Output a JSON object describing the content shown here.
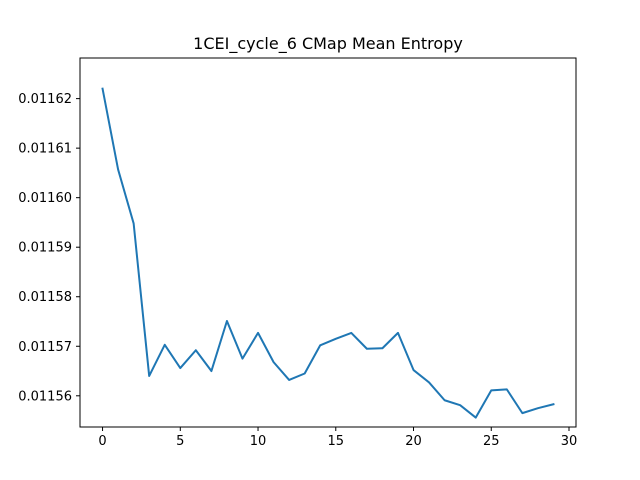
{
  "chart_data": {
    "type": "line",
    "title": "1CEI_cycle_6 CMap Mean Entropy",
    "xlabel": "",
    "ylabel": "",
    "xlim": [
      -1.45,
      30.45
    ],
    "ylim": [
      0.0115537,
      0.0116282
    ],
    "x_ticks": [
      0,
      5,
      10,
      15,
      20,
      25,
      30
    ],
    "x_tick_labels": [
      "0",
      "5",
      "10",
      "15",
      "20",
      "25",
      "30"
    ],
    "y_ticks": [
      0.01156,
      0.01157,
      0.01158,
      0.01159,
      0.0116,
      0.01161,
      0.01162
    ],
    "y_tick_labels": [
      "0.01156",
      "0.01157",
      "0.01158",
      "0.01159",
      "0.01160",
      "0.01161",
      "0.01162"
    ],
    "grid": false,
    "legend": "none",
    "line_color": "#1f77b4",
    "series": [
      {
        "x": [
          0,
          1,
          2,
          3,
          4,
          5,
          6,
          7,
          8,
          9,
          10,
          11,
          12,
          13,
          14,
          15,
          16,
          17,
          18,
          19,
          20,
          21,
          22,
          23,
          24,
          25,
          26,
          27,
          28,
          29
        ],
        "values": [
          0.011622,
          0.0116057,
          0.0115948,
          0.011564,
          0.0115703,
          0.0115656,
          0.0115692,
          0.011565,
          0.0115751,
          0.0115675,
          0.0115727,
          0.0115668,
          0.0115632,
          0.0115645,
          0.0115702,
          0.0115715,
          0.0115727,
          0.0115695,
          0.0115696,
          0.0115727,
          0.0115652,
          0.0115627,
          0.0115591,
          0.0115581,
          0.0115556,
          0.0115611,
          0.0115613,
          0.0115565,
          0.0115575,
          0.0115583
        ]
      }
    ]
  }
}
